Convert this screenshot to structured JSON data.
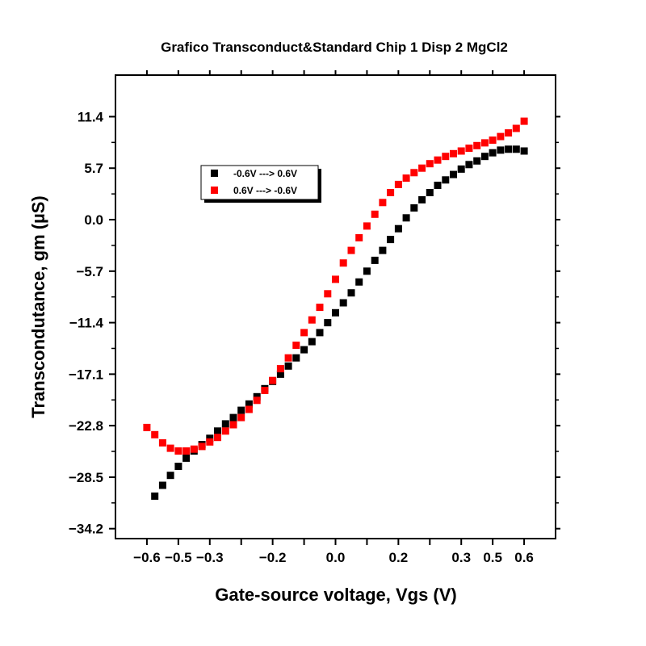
{
  "chart_data": {
    "type": "scatter",
    "title": "Grafico Transconduct&Standard Chip 1 Disp 2 MgCl2",
    "xlabel": "Gate-source voltage, Vgs (V)",
    "ylabel": "Transcondutance, gm (µS)",
    "xlim": [
      -0.7,
      0.7
    ],
    "ylim": [
      -35.3,
      16.0
    ],
    "xticks": [
      -0.6,
      -0.5,
      -0.4,
      -0.3,
      -0.2,
      -0.1,
      0.0,
      0.1,
      0.2,
      0.3,
      0.4,
      0.5,
      0.6
    ],
    "xtick_labels": [
      "−0.6",
      "−0.5",
      "−0.3",
      "−0.2",
      "0.0",
      "0.2",
      "0.3",
      "0.5",
      "0.6"
    ],
    "xtick_label_positions": [
      -0.6,
      -0.5,
      -0.4,
      -0.2,
      0.0,
      0.2,
      0.4,
      0.5,
      0.6
    ],
    "yticks": [
      -34.2,
      -28.5,
      -22.8,
      -17.1,
      -11.4,
      -5.7,
      0.0,
      5.7,
      11.4
    ],
    "ytick_labels": [
      "−34.2",
      "−28.5",
      "−22.8",
      "−17.1",
      "−11.4",
      "−5.7",
      "0.0",
      "5.7",
      "11.4"
    ],
    "grid": false,
    "legend_position": "top-left",
    "series": [
      {
        "name": "-0.6V ---> 0.6V",
        "color": "#000000",
        "marker": "square",
        "x": [
          -0.575,
          -0.55,
          -0.525,
          -0.5,
          -0.475,
          -0.45,
          -0.425,
          -0.4,
          -0.375,
          -0.35,
          -0.325,
          -0.3,
          -0.275,
          -0.25,
          -0.225,
          -0.2,
          -0.175,
          -0.15,
          -0.125,
          -0.1,
          -0.075,
          -0.05,
          -0.025,
          0.0,
          0.025,
          0.05,
          0.075,
          0.1,
          0.125,
          0.15,
          0.175,
          0.2,
          0.225,
          0.25,
          0.275,
          0.3,
          0.325,
          0.35,
          0.375,
          0.4,
          0.425,
          0.45,
          0.475,
          0.5,
          0.525,
          0.55,
          0.575,
          0.6
        ],
        "y": [
          -30.6,
          -29.4,
          -28.3,
          -27.3,
          -26.4,
          -25.6,
          -24.9,
          -24.2,
          -23.4,
          -22.6,
          -21.9,
          -21.1,
          -20.4,
          -19.6,
          -18.7,
          -17.9,
          -17.1,
          -16.2,
          -15.3,
          -14.4,
          -13.5,
          -12.5,
          -11.4,
          -10.3,
          -9.2,
          -8.1,
          -6.9,
          -5.7,
          -4.5,
          -3.4,
          -2.2,
          -1.0,
          0.2,
          1.3,
          2.2,
          3.0,
          3.8,
          4.4,
          5.0,
          5.6,
          6.1,
          6.5,
          7.0,
          7.4,
          7.7,
          7.8,
          7.8,
          7.6
        ]
      },
      {
        "name": "0.6V ---> -0.6V",
        "color": "#ff0000",
        "marker": "square",
        "x": [
          0.6,
          0.575,
          0.55,
          0.525,
          0.5,
          0.475,
          0.45,
          0.425,
          0.4,
          0.375,
          0.35,
          0.325,
          0.3,
          0.275,
          0.25,
          0.225,
          0.2,
          0.175,
          0.15,
          0.125,
          0.1,
          0.075,
          0.05,
          0.025,
          0.0,
          -0.025,
          -0.05,
          -0.075,
          -0.1,
          -0.125,
          -0.15,
          -0.175,
          -0.2,
          -0.225,
          -0.25,
          -0.275,
          -0.3,
          -0.325,
          -0.35,
          -0.375,
          -0.4,
          -0.425,
          -0.45,
          -0.475,
          -0.5,
          -0.525,
          -0.55,
          -0.575,
          -0.6
        ],
        "y": [
          10.9,
          10.1,
          9.6,
          9.2,
          8.8,
          8.5,
          8.2,
          7.9,
          7.6,
          7.3,
          7.0,
          6.6,
          6.2,
          5.7,
          5.2,
          4.6,
          3.9,
          3.0,
          1.9,
          0.6,
          -0.7,
          -2.0,
          -3.4,
          -4.8,
          -6.6,
          -8.2,
          -9.7,
          -11.1,
          -12.5,
          -13.9,
          -15.3,
          -16.5,
          -17.8,
          -18.9,
          -20.0,
          -21.0,
          -21.9,
          -22.7,
          -23.4,
          -24.1,
          -24.6,
          -25.1,
          -25.4,
          -25.6,
          -25.6,
          -25.3,
          -24.7,
          -23.8,
          -23.0
        ]
      }
    ]
  }
}
